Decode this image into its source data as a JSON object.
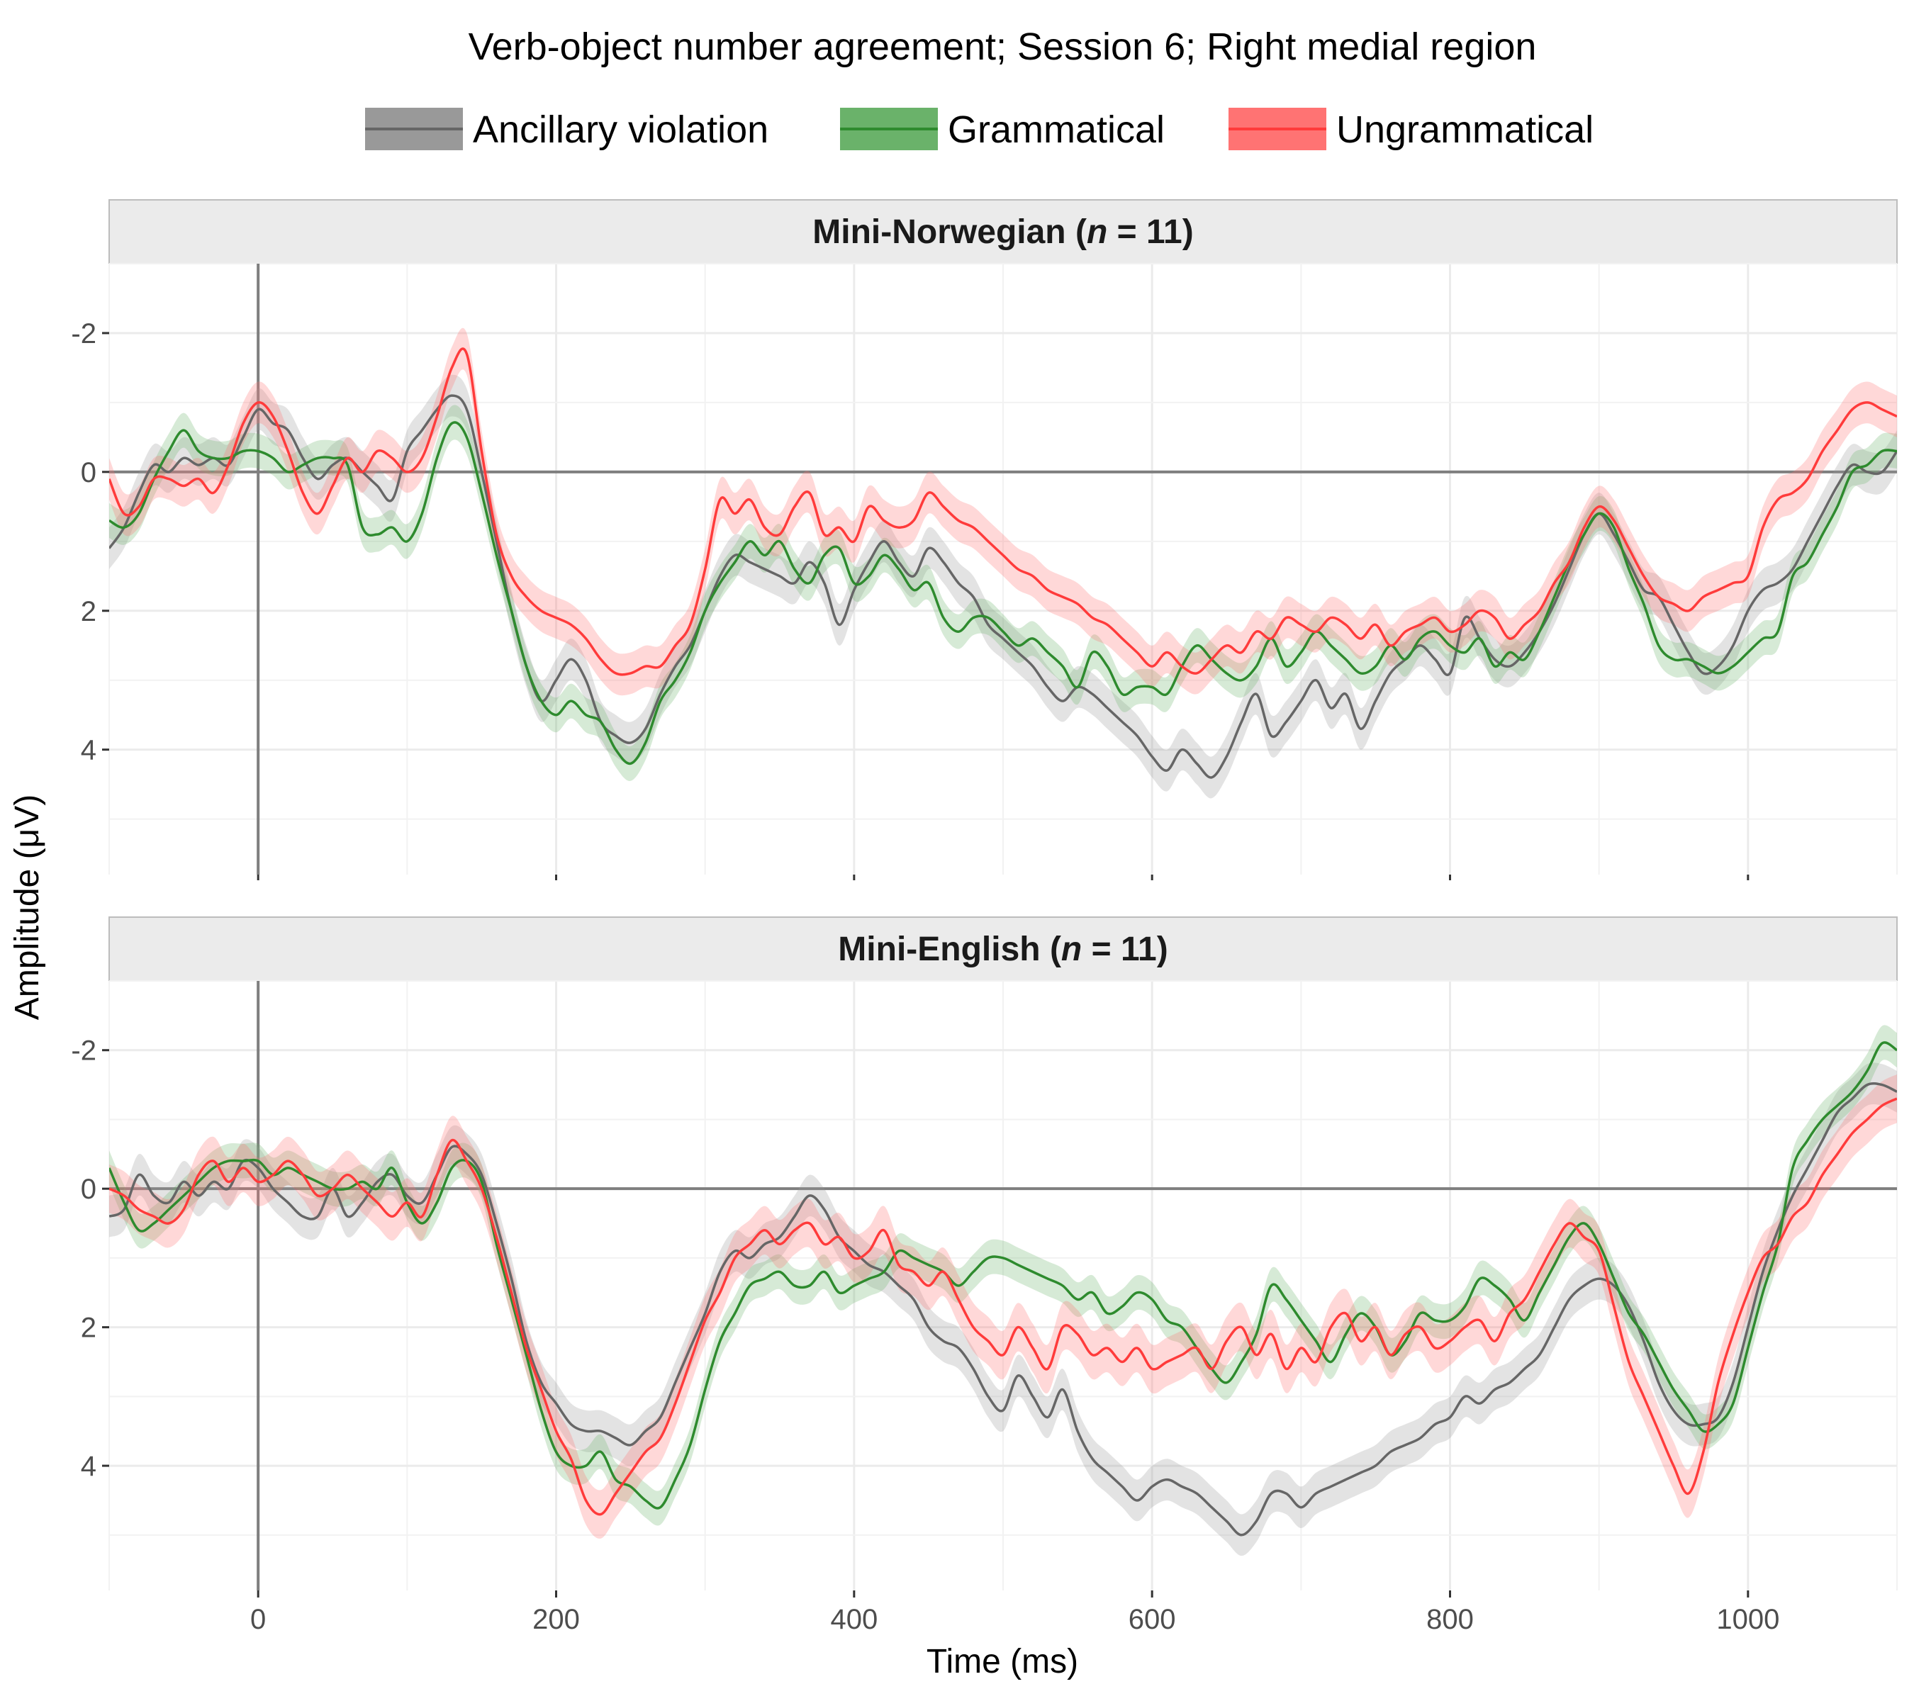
{
  "chart_data": {
    "type": "line",
    "title": "Verb-object number agreement; Session 6; Right medial region",
    "xlabel": "Time (ms)",
    "ylabel": "Amplitude (μV)",
    "x_range": [
      -100,
      1100
    ],
    "y_range": [
      -3,
      5.8
    ],
    "y_reversed": true,
    "x_ticks": [
      0,
      200,
      400,
      600,
      800,
      1000
    ],
    "y_ticks": [
      -2,
      0,
      2,
      4
    ],
    "y_tick_labels": [
      "-2",
      "0",
      "2",
      "4"
    ],
    "grid": true,
    "legend_position": "top",
    "legend": [
      {
        "name": "Ancillary violation",
        "color": "#666666",
        "fill": "#999999"
      },
      {
        "name": "Grammatical",
        "color": "#2e8b2e",
        "fill": "#6ab26a"
      },
      {
        "name": "Ungrammatical",
        "color": "#ff3b3b",
        "fill": "#ff7373"
      }
    ],
    "panels": [
      {
        "strip_prefix": "Mini-Norwegian (",
        "strip_n": "n",
        "strip_suffix": " = 11)",
        "ribbon_halfwidth": [
          0.3,
          0.25,
          0.3
        ],
        "x": [
          -100,
          -90,
          -80,
          -70,
          -60,
          -50,
          -40,
          -30,
          -20,
          -10,
          0,
          10,
          20,
          30,
          40,
          50,
          60,
          70,
          80,
          90,
          100,
          110,
          120,
          130,
          140,
          150,
          160,
          170,
          180,
          190,
          200,
          210,
          220,
          230,
          240,
          250,
          260,
          270,
          280,
          290,
          300,
          310,
          320,
          330,
          340,
          350,
          360,
          370,
          380,
          390,
          400,
          410,
          420,
          430,
          440,
          450,
          460,
          470,
          480,
          490,
          500,
          510,
          520,
          530,
          540,
          550,
          560,
          570,
          580,
          590,
          600,
          610,
          620,
          630,
          640,
          650,
          660,
          670,
          680,
          690,
          700,
          710,
          720,
          730,
          740,
          750,
          760,
          770,
          780,
          790,
          800,
          810,
          820,
          830,
          840,
          850,
          860,
          870,
          880,
          890,
          900,
          910,
          920,
          930,
          940,
          950,
          960,
          970,
          980,
          990,
          1000,
          1010,
          1020,
          1030,
          1040,
          1050,
          1060,
          1070,
          1080,
          1090,
          1100
        ],
        "series": [
          {
            "name": "Ancillary violation",
            "values": [
              1.1,
              0.8,
              0.3,
              -0.1,
              0.0,
              -0.2,
              -0.1,
              -0.2,
              -0.1,
              -0.5,
              -0.9,
              -0.7,
              -0.6,
              -0.2,
              0.1,
              -0.1,
              -0.2,
              0.0,
              0.2,
              0.4,
              -0.3,
              -0.6,
              -0.9,
              -1.1,
              -0.9,
              0.0,
              1.0,
              2.0,
              2.8,
              3.3,
              3.0,
              2.7,
              3.0,
              3.6,
              3.8,
              3.9,
              3.7,
              3.2,
              2.8,
              2.5,
              2.0,
              1.5,
              1.2,
              1.3,
              1.4,
              1.5,
              1.6,
              1.3,
              1.6,
              2.2,
              1.7,
              1.3,
              1.0,
              1.3,
              1.5,
              1.1,
              1.3,
              1.6,
              1.8,
              2.2,
              2.4,
              2.6,
              2.8,
              3.1,
              3.3,
              3.1,
              3.2,
              3.4,
              3.6,
              3.8,
              4.1,
              4.3,
              4.0,
              4.2,
              4.4,
              4.1,
              3.6,
              3.2,
              3.8,
              3.6,
              3.3,
              3.0,
              3.4,
              3.2,
              3.7,
              3.3,
              2.9,
              2.7,
              2.5,
              2.7,
              2.9,
              2.1,
              2.4,
              2.7,
              2.8,
              2.6,
              2.3,
              1.9,
              1.4,
              0.9,
              0.6,
              0.9,
              1.3,
              1.7,
              1.8,
              2.2,
              2.6,
              2.9,
              2.8,
              2.5,
              2.0,
              1.7,
              1.6,
              1.4,
              1.0,
              0.6,
              0.2,
              -0.1,
              0.0,
              0.0,
              -0.3
            ]
          },
          {
            "name": "Grammatical",
            "values": [
              0.7,
              0.8,
              0.6,
              0.1,
              -0.3,
              -0.6,
              -0.3,
              -0.2,
              -0.2,
              -0.3,
              -0.3,
              -0.2,
              0.0,
              -0.1,
              -0.2,
              -0.2,
              -0.1,
              0.8,
              0.9,
              0.8,
              1.0,
              0.6,
              -0.2,
              -0.7,
              -0.5,
              0.3,
              1.2,
              2.0,
              2.8,
              3.3,
              3.5,
              3.3,
              3.5,
              3.6,
              4.0,
              4.2,
              3.9,
              3.3,
              3.0,
              2.6,
              2.0,
              1.6,
              1.3,
              1.0,
              1.2,
              1.0,
              1.4,
              1.6,
              1.2,
              1.1,
              1.6,
              1.5,
              1.2,
              1.4,
              1.7,
              1.6,
              2.1,
              2.3,
              2.1,
              2.1,
              2.3,
              2.5,
              2.4,
              2.6,
              2.8,
              3.1,
              2.6,
              2.8,
              3.2,
              3.1,
              3.1,
              3.2,
              2.8,
              2.5,
              2.7,
              2.9,
              3.0,
              2.8,
              2.4,
              2.8,
              2.6,
              2.3,
              2.5,
              2.7,
              2.9,
              2.8,
              2.5,
              2.7,
              2.4,
              2.3,
              2.5,
              2.6,
              2.4,
              2.8,
              2.6,
              2.7,
              2.3,
              1.8,
              1.3,
              0.9,
              0.6,
              0.8,
              1.4,
              1.9,
              2.5,
              2.7,
              2.7,
              2.8,
              2.9,
              2.8,
              2.6,
              2.4,
              2.3,
              1.5,
              1.3,
              0.9,
              0.5,
              0.0,
              -0.1,
              -0.3,
              -0.3
            ]
          },
          {
            "name": "Ungrammatical",
            "values": [
              0.1,
              0.6,
              0.5,
              0.1,
              0.1,
              0.2,
              0.1,
              0.3,
              -0.1,
              -0.7,
              -1.0,
              -0.8,
              -0.3,
              0.3,
              0.6,
              0.2,
              -0.2,
              0.0,
              -0.3,
              -0.2,
              0.0,
              -0.2,
              -0.8,
              -1.5,
              -1.7,
              -0.3,
              0.9,
              1.5,
              1.8,
              2.0,
              2.1,
              2.2,
              2.4,
              2.7,
              2.9,
              2.9,
              2.8,
              2.8,
              2.5,
              2.2,
              1.4,
              0.4,
              0.6,
              0.4,
              0.8,
              0.9,
              0.5,
              0.3,
              0.9,
              0.8,
              1.0,
              0.5,
              0.7,
              0.8,
              0.7,
              0.3,
              0.5,
              0.7,
              0.8,
              1.0,
              1.2,
              1.4,
              1.5,
              1.7,
              1.8,
              1.9,
              2.1,
              2.2,
              2.4,
              2.6,
              2.8,
              2.6,
              2.8,
              2.9,
              2.7,
              2.5,
              2.6,
              2.3,
              2.4,
              2.1,
              2.2,
              2.3,
              2.1,
              2.2,
              2.4,
              2.2,
              2.5,
              2.3,
              2.2,
              2.1,
              2.3,
              2.2,
              2.0,
              2.1,
              2.4,
              2.2,
              2.0,
              1.6,
              1.3,
              0.8,
              0.5,
              0.7,
              1.1,
              1.5,
              1.8,
              1.9,
              2.0,
              1.8,
              1.7,
              1.6,
              1.5,
              0.8,
              0.4,
              0.3,
              0.1,
              -0.3,
              -0.6,
              -0.9,
              -1.0,
              -0.9,
              -0.8
            ]
          }
        ]
      },
      {
        "strip_prefix": "Mini-English (",
        "strip_n": "n",
        "strip_suffix": " = 11)",
        "ribbon_halfwidth": [
          0.3,
          0.25,
          0.35
        ],
        "x": [
          -100,
          -90,
          -80,
          -70,
          -60,
          -50,
          -40,
          -30,
          -20,
          -10,
          0,
          10,
          20,
          30,
          40,
          50,
          60,
          70,
          80,
          90,
          100,
          110,
          120,
          130,
          140,
          150,
          160,
          170,
          180,
          190,
          200,
          210,
          220,
          230,
          240,
          250,
          260,
          270,
          280,
          290,
          300,
          310,
          320,
          330,
          340,
          350,
          360,
          370,
          380,
          390,
          400,
          410,
          420,
          430,
          440,
          450,
          460,
          470,
          480,
          490,
          500,
          510,
          520,
          530,
          540,
          550,
          560,
          570,
          580,
          590,
          600,
          610,
          620,
          630,
          640,
          650,
          660,
          670,
          680,
          690,
          700,
          710,
          720,
          730,
          740,
          750,
          760,
          770,
          780,
          790,
          800,
          810,
          820,
          830,
          840,
          850,
          860,
          870,
          880,
          890,
          900,
          910,
          920,
          930,
          940,
          950,
          960,
          970,
          980,
          990,
          1000,
          1010,
          1020,
          1030,
          1040,
          1050,
          1060,
          1070,
          1080,
          1090,
          1100
        ],
        "series": [
          {
            "name": "Ancillary violation",
            "values": [
              0.4,
              0.3,
              -0.2,
              0.1,
              0.2,
              -0.1,
              0.1,
              -0.1,
              0.0,
              -0.4,
              -0.3,
              0.0,
              0.2,
              0.4,
              0.4,
              0.0,
              0.4,
              0.2,
              -0.1,
              -0.2,
              0.1,
              0.2,
              -0.2,
              -0.6,
              -0.5,
              -0.2,
              0.5,
              1.3,
              2.2,
              2.8,
              3.1,
              3.4,
              3.5,
              3.5,
              3.6,
              3.7,
              3.5,
              3.3,
              2.8,
              2.3,
              1.8,
              1.2,
              0.9,
              1.0,
              0.8,
              0.7,
              0.4,
              0.1,
              0.3,
              0.7,
              0.9,
              1.1,
              1.2,
              1.4,
              1.6,
              2.0,
              2.2,
              2.3,
              2.6,
              3.0,
              3.2,
              2.7,
              3.0,
              3.3,
              2.9,
              3.5,
              3.9,
              4.1,
              4.3,
              4.5,
              4.3,
              4.2,
              4.3,
              4.4,
              4.6,
              4.8,
              5.0,
              4.8,
              4.4,
              4.4,
              4.6,
              4.4,
              4.3,
              4.2,
              4.1,
              4.0,
              3.8,
              3.7,
              3.6,
              3.4,
              3.3,
              3.0,
              3.1,
              2.9,
              2.8,
              2.6,
              2.4,
              2.0,
              1.6,
              1.4,
              1.3,
              1.4,
              1.7,
              2.2,
              2.8,
              3.2,
              3.4,
              3.4,
              3.3,
              2.8,
              2.0,
              1.2,
              0.6,
              0.1,
              -0.3,
              -0.7,
              -1.1,
              -1.3,
              -1.5,
              -1.5,
              -1.4
            ]
          },
          {
            "name": "Grammatical",
            "values": [
              -0.3,
              0.2,
              0.6,
              0.5,
              0.3,
              0.1,
              -0.1,
              -0.3,
              -0.4,
              -0.4,
              -0.4,
              -0.2,
              -0.3,
              -0.2,
              -0.1,
              0.0,
              0.0,
              -0.1,
              0.0,
              -0.3,
              0.2,
              0.5,
              0.2,
              -0.3,
              -0.4,
              -0.1,
              0.8,
              1.6,
              2.4,
              3.2,
              3.8,
              4.0,
              4.0,
              3.8,
              4.2,
              4.3,
              4.5,
              4.6,
              4.2,
              3.7,
              2.9,
              2.2,
              1.8,
              1.4,
              1.3,
              1.2,
              1.4,
              1.4,
              1.2,
              1.5,
              1.4,
              1.3,
              1.2,
              0.9,
              1.0,
              1.1,
              1.2,
              1.4,
              1.2,
              1.0,
              1.0,
              1.1,
              1.2,
              1.3,
              1.4,
              1.6,
              1.5,
              1.8,
              1.7,
              1.5,
              1.6,
              1.9,
              2.0,
              2.3,
              2.6,
              2.8,
              2.5,
              2.1,
              1.4,
              1.6,
              1.9,
              2.2,
              2.5,
              2.1,
              1.8,
              2.0,
              2.4,
              2.2,
              1.8,
              1.9,
              1.9,
              1.7,
              1.3,
              1.4,
              1.6,
              1.9,
              1.5,
              1.1,
              0.7,
              0.5,
              0.8,
              1.3,
              1.8,
              2.1,
              2.5,
              2.9,
              3.2,
              3.5,
              3.4,
              3.1,
              2.3,
              1.5,
              0.8,
              -0.3,
              -0.7,
              -1.0,
              -1.2,
              -1.4,
              -1.7,
              -2.1,
              -2.0
            ]
          },
          {
            "name": "Ungrammatical",
            "values": [
              0.0,
              0.1,
              0.3,
              0.4,
              0.5,
              0.3,
              -0.2,
              -0.4,
              -0.1,
              -0.3,
              -0.1,
              -0.2,
              -0.4,
              -0.2,
              0.1,
              0.0,
              -0.2,
              0.0,
              0.2,
              0.4,
              0.2,
              0.4,
              -0.2,
              -0.7,
              -0.4,
              0.0,
              0.7,
              1.5,
              2.3,
              2.9,
              3.5,
              3.9,
              4.5,
              4.7,
              4.4,
              4.1,
              3.8,
              3.6,
              3.1,
              2.5,
              1.9,
              1.5,
              1.0,
              0.8,
              0.6,
              0.8,
              0.6,
              0.5,
              0.8,
              0.7,
              1.0,
              0.9,
              0.6,
              1.1,
              1.2,
              1.4,
              1.2,
              1.6,
              2.0,
              2.2,
              2.4,
              2.0,
              2.3,
              2.6,
              2.0,
              2.1,
              2.4,
              2.3,
              2.5,
              2.3,
              2.6,
              2.5,
              2.4,
              2.3,
              2.6,
              2.2,
              2.0,
              2.4,
              2.1,
              2.6,
              2.3,
              2.5,
              2.0,
              1.8,
              2.2,
              2.0,
              2.4,
              2.1,
              2.0,
              2.3,
              2.2,
              2.0,
              1.9,
              2.2,
              1.8,
              1.6,
              1.2,
              0.8,
              0.5,
              0.7,
              0.9,
              1.7,
              2.5,
              3.0,
              3.5,
              4.0,
              4.4,
              3.8,
              2.8,
              2.1,
              1.5,
              1.0,
              0.8,
              0.4,
              0.2,
              -0.2,
              -0.5,
              -0.8,
              -1.0,
              -1.2,
              -1.3
            ]
          }
        ]
      }
    ]
  }
}
